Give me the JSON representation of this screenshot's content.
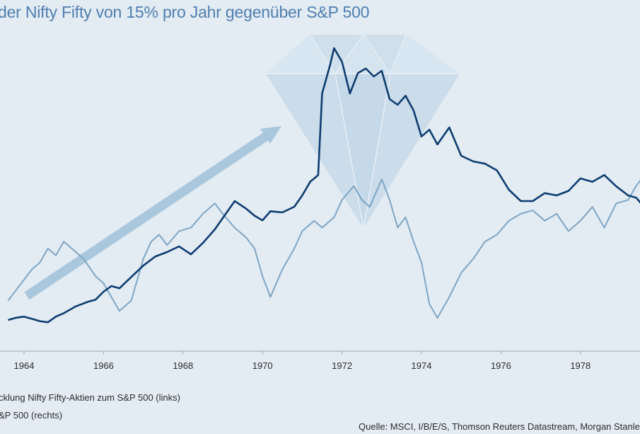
{
  "chart_data": {
    "type": "line",
    "title": "der Nifty Fifty von 15% pro Jahr gegenüber S&P 500",
    "x_ticks": [
      "1964",
      "1966",
      "1968",
      "1970",
      "1972",
      "1974",
      "1976",
      "1978"
    ],
    "x_range": [
      1963.6,
      1979.8
    ],
    "grid": false,
    "legend_position": "bottom-left",
    "series": [
      {
        "name": "cklung Nifty Fifty-Aktien zum S&P 500  (links)",
        "axis": "left",
        "color": "#0d3d70",
        "x": [
          1963.6,
          1963.8,
          1964.0,
          1964.2,
          1964.4,
          1964.6,
          1964.8,
          1965.0,
          1965.3,
          1965.6,
          1965.8,
          1966.0,
          1966.2,
          1966.4,
          1966.7,
          1967.0,
          1967.3,
          1967.6,
          1967.9,
          1968.2,
          1968.5,
          1968.8,
          1969.0,
          1969.3,
          1969.6,
          1969.8,
          1970.0,
          1970.2,
          1970.5,
          1970.8,
          1971.0,
          1971.2,
          1971.4,
          1971.5,
          1971.7,
          1971.8,
          1972.0,
          1972.2,
          1972.4,
          1972.6,
          1972.8,
          1973.0,
          1973.2,
          1973.4,
          1973.6,
          1973.8,
          1974.0,
          1974.2,
          1974.4,
          1974.7,
          1975.0,
          1975.3,
          1975.6,
          1975.9,
          1976.2,
          1976.5,
          1976.8,
          1977.1,
          1977.4,
          1977.7,
          1978.0,
          1978.3,
          1978.6,
          1978.9,
          1979.2,
          1979.4,
          1979.6,
          1979.8
        ],
        "values": [
          100,
          102,
          103,
          101,
          99,
          98,
          103,
          106,
          112,
          116,
          118,
          125,
          130,
          128,
          138,
          148,
          156,
          160,
          165,
          158,
          168,
          180,
          190,
          205,
          198,
          192,
          188,
          196,
          195,
          200,
          210,
          222,
          228,
          300,
          325,
          340,
          328,
          300,
          318,
          322,
          315,
          320,
          295,
          290,
          298,
          285,
          262,
          268,
          255,
          270,
          245,
          240,
          238,
          232,
          215,
          205,
          205,
          212,
          210,
          214,
          225,
          222,
          228,
          218,
          210,
          208,
          200,
          210
        ]
      },
      {
        "name": "&P 500  (rechts)",
        "axis": "right",
        "color": "#7fa6c4",
        "x": [
          1963.6,
          1963.8,
          1964.0,
          1964.2,
          1964.4,
          1964.6,
          1964.8,
          1965.0,
          1965.3,
          1965.5,
          1965.8,
          1966.0,
          1966.2,
          1966.4,
          1966.7,
          1967.0,
          1967.2,
          1967.4,
          1967.6,
          1967.9,
          1968.2,
          1968.5,
          1968.8,
          1969.0,
          1969.3,
          1969.6,
          1969.8,
          1970.0,
          1970.2,
          1970.5,
          1970.8,
          1971.0,
          1971.3,
          1971.5,
          1971.8,
          1972.0,
          1972.3,
          1972.5,
          1972.7,
          1973.0,
          1973.2,
          1973.4,
          1973.6,
          1973.8,
          1974.0,
          1974.2,
          1974.4,
          1974.7,
          1975.0,
          1975.3,
          1975.6,
          1975.9,
          1976.2,
          1976.5,
          1976.8,
          1977.1,
          1977.4,
          1977.7,
          1978.0,
          1978.3,
          1978.6,
          1978.9,
          1979.2,
          1979.4,
          1979.6,
          1979.8
        ],
        "values": [
          75,
          78,
          81,
          84,
          86,
          90,
          88,
          92,
          89,
          87,
          82,
          80,
          76,
          72,
          75,
          87,
          92,
          94,
          91,
          95,
          96,
          100,
          103,
          100,
          96,
          93,
          90,
          82,
          76,
          84,
          90,
          95,
          98,
          96,
          99,
          104,
          108,
          104,
          102,
          110,
          104,
          96,
          99,
          92,
          86,
          74,
          70,
          76,
          83,
          87,
          92,
          94,
          98,
          100,
          101,
          98,
          100,
          95,
          98,
          102,
          96,
          103,
          104,
          108,
          111,
          106
        ]
      }
    ]
  },
  "legend": {
    "item1": "cklung Nifty Fifty-Aktien zum S&P 500  (links)",
    "item2": "&P 500  (rechts)"
  },
  "source": "Quelle: MSCI, I/B/E/S, Thomson Reuters Datastream, Morgan Stanley; S"
}
